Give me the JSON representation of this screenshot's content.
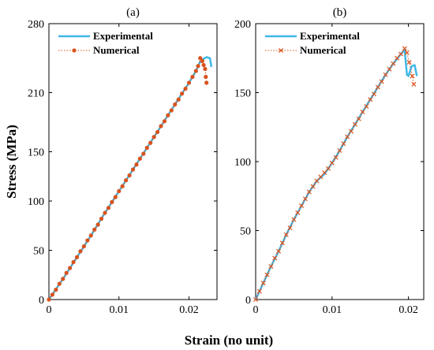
{
  "figure": {
    "ylabel": "Stress (MPa)",
    "xlabel": "Strain (no unit)"
  },
  "colors": {
    "experimental": "#3fb8e8",
    "numerical": "#d9531e",
    "axis": "#000000"
  },
  "chart_data": [
    {
      "type": "line",
      "title": "(a)",
      "xlim": [
        0,
        0.024
      ],
      "ylim": [
        0,
        280
      ],
      "xticks": [
        0,
        0.01,
        0.02
      ],
      "xtick_labels": [
        "0",
        "0.01",
        "0.02"
      ],
      "yticks": [
        0,
        50,
        100,
        150,
        210,
        280
      ],
      "ytick_labels": [
        "0",
        "50",
        "100",
        "150",
        "210",
        "280"
      ],
      "grid": false,
      "legend_position": "top-left",
      "series": [
        {
          "name": "Experimental",
          "style": "solid",
          "marker": "none",
          "x": [
            0,
            0.002,
            0.004,
            0.006,
            0.008,
            0.01,
            0.012,
            0.014,
            0.016,
            0.018,
            0.02,
            0.021,
            0.0215,
            0.022,
            0.0225,
            0.023,
            0.0232
          ],
          "y": [
            0,
            21,
            43,
            65,
            88,
            110,
            132,
            154,
            176,
            198,
            220,
            232,
            240,
            244,
            246,
            245,
            236
          ]
        },
        {
          "name": "Numerical",
          "style": "dotted",
          "marker": "circle",
          "x": [
            0,
            0.0005,
            0.001,
            0.0015,
            0.002,
            0.0025,
            0.003,
            0.0035,
            0.004,
            0.0045,
            0.005,
            0.0055,
            0.006,
            0.0065,
            0.007,
            0.0075,
            0.008,
            0.0085,
            0.009,
            0.0095,
            0.01,
            0.0105,
            0.011,
            0.0115,
            0.012,
            0.0125,
            0.013,
            0.0135,
            0.014,
            0.0145,
            0.015,
            0.0155,
            0.016,
            0.0165,
            0.017,
            0.0175,
            0.018,
            0.0185,
            0.019,
            0.0195,
            0.02,
            0.0205,
            0.021,
            0.0213,
            0.0216,
            0.0219,
            0.0221,
            0.0223,
            0.0224,
            0.0225
          ],
          "y": [
            0,
            5,
            10,
            16,
            21,
            27,
            32,
            38,
            43,
            49,
            54,
            60,
            65,
            71,
            76,
            82,
            88,
            93,
            99,
            104,
            110,
            115,
            121,
            126,
            132,
            137,
            143,
            148,
            154,
            159,
            165,
            170,
            176,
            181,
            187,
            192,
            198,
            203,
            209,
            214,
            220,
            226,
            232,
            237,
            245,
            242,
            238,
            234,
            226,
            220
          ]
        }
      ]
    },
    {
      "type": "line",
      "title": "(b)",
      "xlim": [
        0,
        0.022
      ],
      "ylim": [
        0,
        200
      ],
      "xticks": [
        0,
        0.01,
        0.02
      ],
      "xtick_labels": [
        "0",
        "0.01",
        "0.02"
      ],
      "yticks": [
        0,
        50,
        100,
        150,
        200
      ],
      "ytick_labels": [
        "0",
        "50",
        "100",
        "150",
        "200"
      ],
      "grid": false,
      "legend_position": "top-left",
      "series": [
        {
          "name": "Experimental",
          "style": "solid",
          "marker": "none",
          "x": [
            0,
            0.001,
            0.002,
            0.003,
            0.004,
            0.005,
            0.006,
            0.007,
            0.008,
            0.009,
            0.01,
            0.011,
            0.012,
            0.013,
            0.014,
            0.015,
            0.016,
            0.017,
            0.018,
            0.019,
            0.0195,
            0.0198,
            0.02,
            0.0204,
            0.0208,
            0.0211
          ],
          "y": [
            0,
            12,
            24,
            35,
            47,
            58,
            68,
            78,
            86,
            91,
            99,
            108,
            118,
            127,
            136,
            145,
            154,
            163,
            171,
            178,
            181,
            163,
            162,
            169,
            170,
            162
          ]
        },
        {
          "name": "Numerical",
          "style": "dotted",
          "marker": "x",
          "x": [
            0,
            0.0005,
            0.001,
            0.0015,
            0.002,
            0.0025,
            0.003,
            0.0035,
            0.004,
            0.0045,
            0.005,
            0.0055,
            0.006,
            0.0065,
            0.007,
            0.0075,
            0.008,
            0.0085,
            0.009,
            0.0095,
            0.01,
            0.0105,
            0.011,
            0.0115,
            0.012,
            0.0125,
            0.013,
            0.0135,
            0.014,
            0.0145,
            0.015,
            0.0155,
            0.016,
            0.0165,
            0.017,
            0.0175,
            0.018,
            0.0185,
            0.019,
            0.0195,
            0.0198,
            0.0201,
            0.0205,
            0.0207
          ],
          "y": [
            0,
            6,
            12,
            18,
            24,
            30,
            35,
            41,
            47,
            52,
            58,
            63,
            68,
            73,
            78,
            82,
            86,
            89,
            92,
            95,
            99,
            103,
            108,
            113,
            118,
            122,
            127,
            131,
            136,
            140,
            145,
            149,
            154,
            158,
            163,
            167,
            171,
            175,
            178,
            182,
            179,
            172,
            162,
            156
          ]
        }
      ]
    }
  ]
}
